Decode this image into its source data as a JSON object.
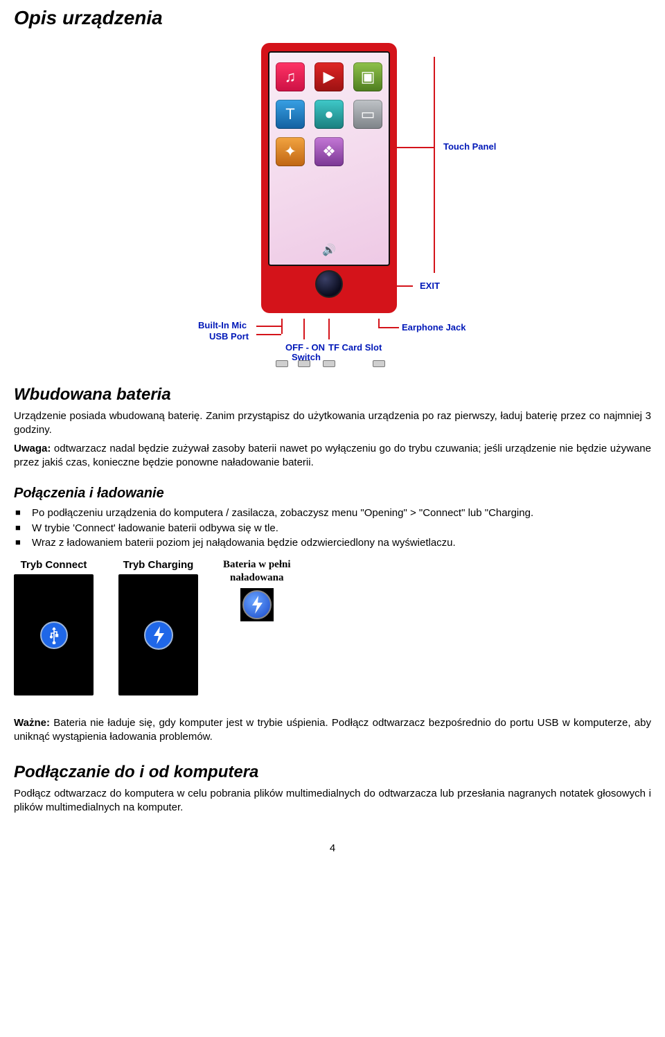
{
  "title": "Opis urządzenia",
  "diagram": {
    "labels": {
      "touch_panel": "Touch Panel",
      "exit": "EXIT",
      "builtin_mic": "Built-In Mic",
      "usb_port": "USB Port",
      "off_on_switch_1": "OFF - ON",
      "off_on_switch_2": "Switch",
      "tf_slot": "TF Card Slot",
      "earphone": "Earphone Jack"
    },
    "label_color": "#0018b8",
    "device_color": "#d4131a",
    "app_icons": [
      {
        "name": "music-icon",
        "glyph": "♫",
        "color": "c-pink"
      },
      {
        "name": "video-icon",
        "glyph": "▶",
        "color": "c-red"
      },
      {
        "name": "photo-icon",
        "glyph": "▣",
        "color": "c-green"
      },
      {
        "name": "fm-icon",
        "glyph": "T",
        "color": "c-blue"
      },
      {
        "name": "record-icon",
        "glyph": "●",
        "color": "c-teal"
      },
      {
        "name": "radio-icon",
        "glyph": "▭",
        "color": "c-grey"
      },
      {
        "name": "ebook-icon",
        "glyph": "✦",
        "color": "c-orange"
      },
      {
        "name": "settings-icon",
        "glyph": "❖",
        "color": "c-purple"
      }
    ]
  },
  "battery": {
    "heading": "Wbudowana bateria",
    "p1": "Urządzenie posiada wbudowaną baterię. Zanim przystąpisz do użytkowania urządzenia po raz pierwszy, ładuj baterię przez co najmniej 3 godziny.",
    "note_label": "Uwaga:",
    "note_text": " odtwarzacz nadal będzie zużywał zasoby baterii nawet po wyłączeniu go do trybu czuwania; jeśli urządzenie nie będzie używane przez jakiś czas, konieczne będzie ponowne naładowanie baterii."
  },
  "charging": {
    "heading": "Połączenia i ładowanie",
    "bullets": [
      "Po podłączeniu urządzenia do komputera / zasilacza, zobaczysz menu \"Opening\" > \"Connect\" lub \"Charging.",
      "W trybie 'Connect' ładowanie baterii odbywa się w tle.",
      "Wraz z ładowaniem baterii poziom jej nałądowania będzie odzwierciedlony na wyświetlaczu."
    ]
  },
  "modes": {
    "connect": "Tryb Connect",
    "charging": "Tryb Charging",
    "full_l1": "Bateria w pełni",
    "full_l2": "naładowana",
    "circle_color": "#1f67e8"
  },
  "important": {
    "label": "Ważne:",
    "text": " Bateria nie ładuje się, gdy komputer jest w trybie uśpienia. Podłącz odtwarzacz bezpośrednio do portu USB w komputerze, aby uniknąć wystąpienia ładowania problemów."
  },
  "connect_pc": {
    "heading": "Podłączanie do i od komputera",
    "text": "Podłącz odtwarzacz do komputera w celu pobrania plików multimedialnych do odtwarzacza lub przesłania nagranych notatek głosowych i plików multimedialnych na komputer."
  },
  "page_number": "4"
}
